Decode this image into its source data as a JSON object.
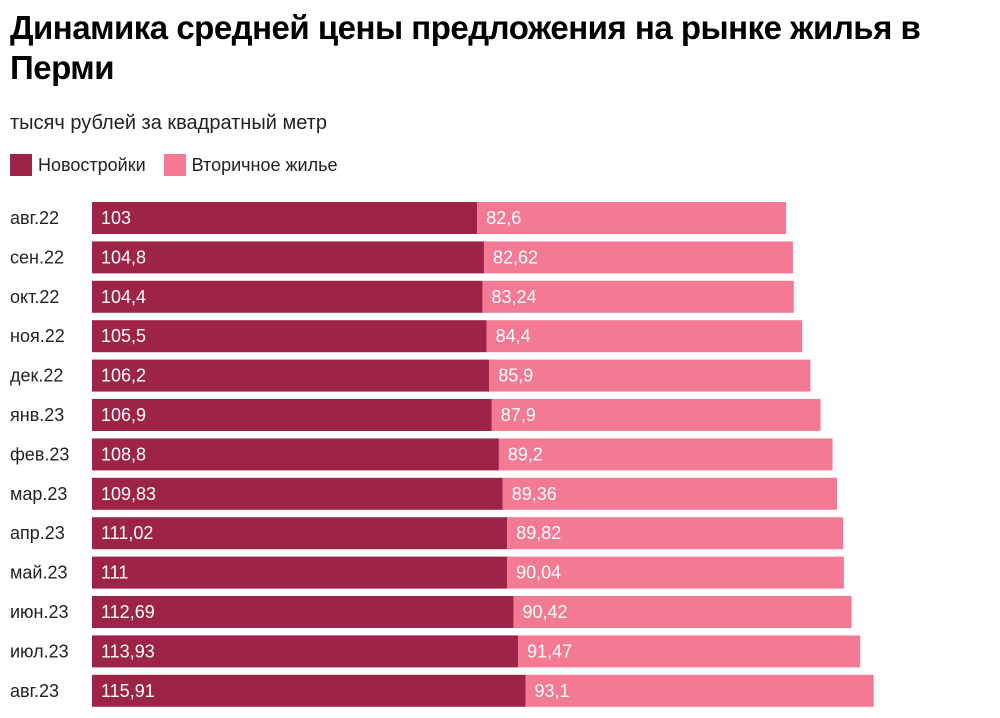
{
  "chart_data": {
    "type": "bar",
    "orientation": "horizontal",
    "stacked": true,
    "title": "Динамика средней цены предложения на рынке жилья в Перми",
    "subtitle": "тысяч рублей за квадратный метр",
    "xlabel": "",
    "ylabel": "",
    "grid": false,
    "legend_position": "top-left",
    "categories": [
      "авг.22",
      "сен.22",
      "окт.22",
      "ноя.22",
      "дек.22",
      "янв.23",
      "фев.23",
      "мар.23",
      "апр.23",
      "май.23",
      "июн.23",
      "июл.23",
      "авг.23"
    ],
    "series": [
      {
        "name": "Новостройки",
        "color": "#9e2349",
        "values": [
          103,
          104.8,
          104.4,
          105.5,
          106.2,
          106.9,
          108.8,
          109.83,
          111.02,
          111,
          112.69,
          113.93,
          115.91
        ],
        "labels": [
          "103",
          "104,8",
          "104,4",
          "105,5",
          "106,2",
          "106,9",
          "108,8",
          "109,83",
          "111,02",
          "111",
          "112,69",
          "113,93",
          "115,91"
        ]
      },
      {
        "name": "Вторичное жилье",
        "color": "#f47a94",
        "values": [
          82.6,
          82.62,
          83.24,
          84.4,
          85.9,
          87.9,
          89.2,
          89.36,
          89.82,
          90.04,
          90.42,
          91.47,
          93.1
        ],
        "labels": [
          "82,6",
          "82,62",
          "83,24",
          "84,4",
          "85,9",
          "87,9",
          "89,2",
          "89,36",
          "89,82",
          "90,04",
          "90,42",
          "91,47",
          "93,1"
        ]
      }
    ]
  }
}
